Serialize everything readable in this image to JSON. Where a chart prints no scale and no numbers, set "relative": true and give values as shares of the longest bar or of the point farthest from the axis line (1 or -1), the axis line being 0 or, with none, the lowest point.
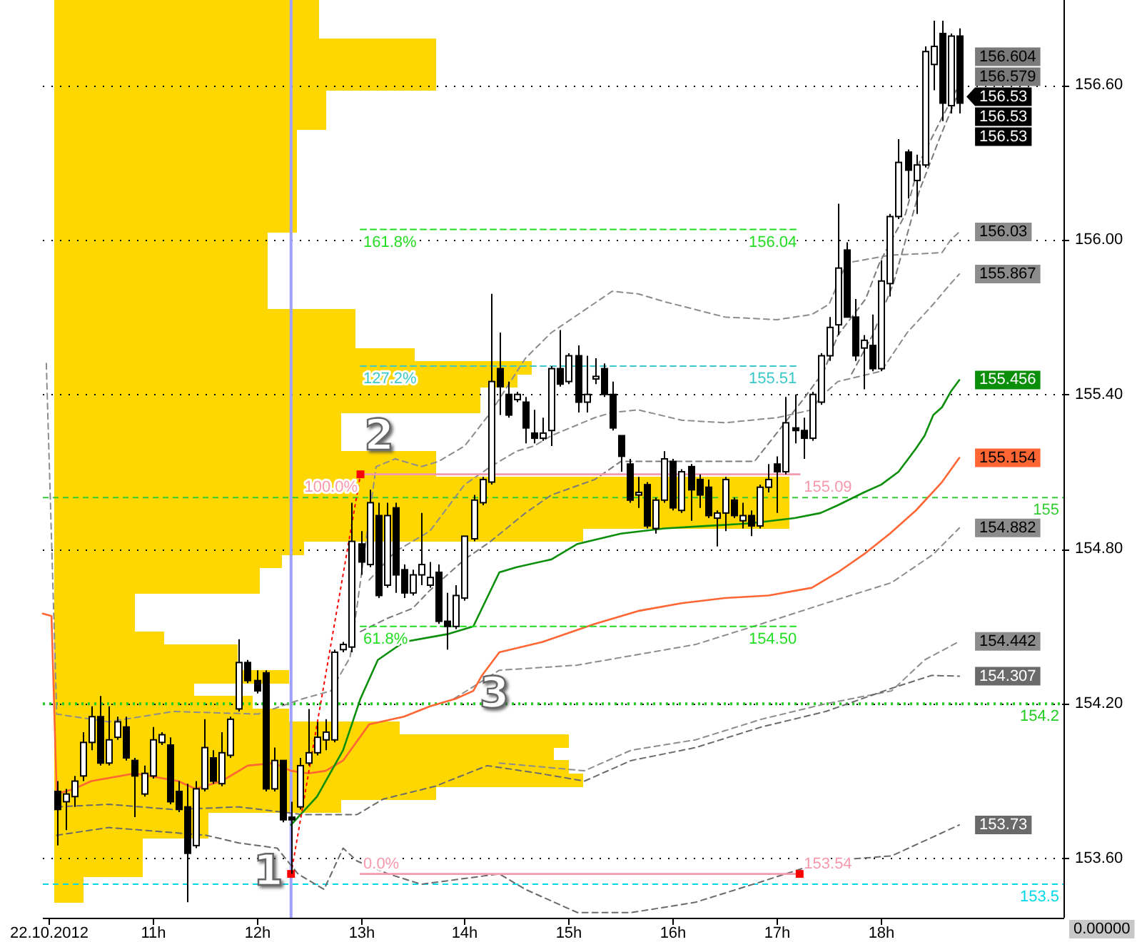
{
  "chart_data": [
    {
      "type": "candlestick",
      "xlim": [
        "2012-10-22T09:57",
        "2012-10-22T19:45"
      ],
      "ylim": [
        153.37,
        156.93
      ],
      "xticks": [
        {
          "value": "2012-10-22T10:00",
          "label": "22.10.2012"
        },
        {
          "value": "2012-10-22T11:00",
          "label": "11h"
        },
        {
          "value": "2012-10-22T12:00",
          "label": "12h"
        },
        {
          "value": "2012-10-22T13:00",
          "label": "13h"
        },
        {
          "value": "2012-10-22T14:00",
          "label": "14h"
        },
        {
          "value": "2012-10-22T15:00",
          "label": "15h"
        },
        {
          "value": "2012-10-22T16:00",
          "label": "16h"
        },
        {
          "value": "2012-10-22T17:00",
          "label": "17h"
        },
        {
          "value": "2012-10-22T18:00",
          "label": "18h"
        }
      ],
      "yticks": [
        {
          "value": 153.6,
          "label": "153.60"
        },
        {
          "value": 154.2,
          "label": "154.20"
        },
        {
          "value": 154.8,
          "label": "154.80"
        },
        {
          "value": 155.4,
          "label": "155.40"
        },
        {
          "value": 156.0,
          "label": "156.00"
        },
        {
          "value": 156.6,
          "label": "156.60"
        }
      ],
      "grid": "y",
      "x": [
        "2012-10-22T10:05",
        "2012-10-22T10:10",
        "2012-10-22T10:15",
        "2012-10-22T10:20",
        "2012-10-22T10:25",
        "2012-10-22T10:30",
        "2012-10-22T10:35",
        "2012-10-22T10:40",
        "2012-10-22T10:45",
        "2012-10-22T10:50",
        "2012-10-22T10:55",
        "2012-10-22T11:00",
        "2012-10-22T11:05",
        "2012-10-22T11:10",
        "2012-10-22T11:15",
        "2012-10-22T11:20",
        "2012-10-22T11:25",
        "2012-10-22T11:30",
        "2012-10-22T11:35",
        "2012-10-22T11:40",
        "2012-10-22T11:45",
        "2012-10-22T11:50",
        "2012-10-22T11:55",
        "2012-10-22T12:00",
        "2012-10-22T12:05",
        "2012-10-22T12:10",
        "2012-10-22T12:15",
        "2012-10-22T12:20",
        "2012-10-22T12:25",
        "2012-10-22T12:30",
        "2012-10-22T12:35",
        "2012-10-22T12:40",
        "2012-10-22T12:45",
        "2012-10-22T12:50",
        "2012-10-22T12:55",
        "2012-10-22T13:00",
        "2012-10-22T13:05",
        "2012-10-22T13:10",
        "2012-10-22T13:15",
        "2012-10-22T13:20",
        "2012-10-22T13:25",
        "2012-10-22T13:30",
        "2012-10-22T13:35",
        "2012-10-22T13:40",
        "2012-10-22T13:45",
        "2012-10-22T13:50",
        "2012-10-22T13:55",
        "2012-10-22T14:00",
        "2012-10-22T14:05",
        "2012-10-22T14:10",
        "2012-10-22T14:15",
        "2012-10-22T14:20",
        "2012-10-22T14:25",
        "2012-10-22T14:30",
        "2012-10-22T14:35",
        "2012-10-22T14:40",
        "2012-10-22T14:45",
        "2012-10-22T14:50",
        "2012-10-22T14:55",
        "2012-10-22T15:00",
        "2012-10-22T15:05",
        "2012-10-22T15:10",
        "2012-10-22T15:15",
        "2012-10-22T15:20",
        "2012-10-22T15:25",
        "2012-10-22T15:30",
        "2012-10-22T15:35",
        "2012-10-22T15:40",
        "2012-10-22T15:45",
        "2012-10-22T15:50",
        "2012-10-22T15:55",
        "2012-10-22T16:00",
        "2012-10-22T16:05",
        "2012-10-22T16:10",
        "2012-10-22T16:15",
        "2012-10-22T16:20",
        "2012-10-22T16:25",
        "2012-10-22T16:30",
        "2012-10-22T16:35",
        "2012-10-22T16:40",
        "2012-10-22T16:45",
        "2012-10-22T16:50",
        "2012-10-22T16:55",
        "2012-10-22T17:00",
        "2012-10-22T17:05",
        "2012-10-22T17:10",
        "2012-10-22T17:15",
        "2012-10-22T17:20",
        "2012-10-22T17:25",
        "2012-10-22T17:30",
        "2012-10-22T17:35",
        "2012-10-22T17:40",
        "2012-10-22T17:45",
        "2012-10-22T17:50",
        "2012-10-22T17:55",
        "2012-10-22T18:00",
        "2012-10-22T18:05",
        "2012-10-22T18:10",
        "2012-10-22T18:15",
        "2012-10-22T18:20",
        "2012-10-22T18:25",
        "2012-10-22T18:30",
        "2012-10-22T18:35",
        "2012-10-22T18:40",
        "2012-10-22T18:45"
      ],
      "ohlc": [
        [
          153.86,
          153.9,
          153.65,
          153.79
        ],
        [
          153.82,
          153.87,
          153.71,
          153.85
        ],
        [
          153.84,
          153.92,
          153.8,
          153.9
        ],
        [
          153.92,
          154.09,
          153.9,
          154.05
        ],
        [
          154.05,
          154.19,
          154.02,
          154.15
        ],
        [
          154.15,
          154.23,
          153.96,
          153.97
        ],
        [
          153.97,
          154.19,
          153.96,
          154.06
        ],
        [
          154.07,
          154.15,
          154.06,
          154.13
        ],
        [
          154.11,
          154.15,
          153.98,
          153.99
        ],
        [
          153.98,
          153.99,
          153.76,
          153.92
        ],
        [
          153.85,
          153.96,
          153.84,
          153.93
        ],
        [
          153.92,
          154.11,
          153.91,
          154.06
        ],
        [
          154.05,
          154.09,
          154.04,
          154.08
        ],
        [
          154.04,
          154.07,
          153.81,
          153.82
        ],
        [
          153.86,
          153.9,
          153.78,
          153.79
        ],
        [
          153.8,
          153.89,
          153.43,
          153.62
        ],
        [
          153.65,
          153.9,
          153.64,
          153.87
        ],
        [
          153.87,
          154.14,
          153.86,
          154.03
        ],
        [
          153.99,
          154.02,
          153.89,
          153.9
        ],
        [
          153.89,
          154.09,
          153.88,
          154.01
        ],
        [
          154.0,
          154.15,
          153.99,
          154.14
        ],
        [
          154.18,
          154.45,
          154.17,
          154.36
        ],
        [
          154.36,
          154.37,
          154.28,
          154.29
        ],
        [
          154.29,
          154.33,
          154.24,
          154.25
        ],
        [
          154.32,
          154.33,
          153.86,
          153.87
        ],
        [
          153.87,
          154.03,
          153.86,
          153.98
        ],
        [
          153.98,
          153.98,
          153.74,
          153.75
        ],
        [
          153.76,
          153.82,
          153.54,
          153.75
        ],
        [
          153.8,
          153.99,
          153.79,
          153.96
        ],
        [
          153.97,
          154.18,
          153.96,
          154.01
        ],
        [
          154.01,
          154.13,
          154.0,
          154.07
        ],
        [
          154.06,
          154.14,
          154.02,
          154.09
        ],
        [
          154.06,
          154.41,
          154.05,
          154.4
        ],
        [
          154.41,
          154.44,
          154.4,
          154.43
        ],
        [
          154.42,
          154.98,
          154.4,
          154.83
        ],
        [
          154.82,
          154.87,
          154.7,
          154.75
        ],
        [
          154.74,
          155.03,
          154.73,
          154.98
        ],
        [
          154.93,
          154.98,
          154.61,
          154.62
        ],
        [
          154.66,
          154.98,
          154.65,
          154.93
        ],
        [
          154.96,
          154.98,
          154.63,
          154.7
        ],
        [
          154.72,
          154.74,
          154.61,
          154.63
        ],
        [
          154.63,
          154.72,
          154.62,
          154.7
        ],
        [
          154.7,
          154.94,
          154.66,
          154.74
        ],
        [
          154.66,
          154.75,
          154.65,
          154.69
        ],
        [
          154.71,
          154.74,
          154.51,
          154.52
        ],
        [
          154.52,
          154.63,
          154.41,
          154.5
        ],
        [
          154.5,
          154.66,
          154.49,
          154.62
        ],
        [
          154.61,
          154.85,
          154.6,
          154.85
        ],
        [
          154.84,
          155.01,
          154.83,
          154.99
        ],
        [
          154.98,
          155.08,
          154.97,
          155.07
        ],
        [
          155.06,
          155.79,
          155.05,
          155.45
        ],
        [
          155.5,
          155.64,
          155.32,
          155.43
        ],
        [
          155.4,
          155.45,
          155.31,
          155.32
        ],
        [
          155.38,
          155.41,
          155.37,
          155.4
        ],
        [
          155.37,
          155.39,
          155.21,
          155.27
        ],
        [
          155.25,
          155.34,
          155.21,
          155.23
        ],
        [
          155.23,
          155.31,
          155.22,
          155.25
        ],
        [
          155.26,
          155.51,
          155.2,
          155.5
        ],
        [
          155.5,
          155.65,
          155.43,
          155.44
        ],
        [
          155.45,
          155.56,
          155.44,
          155.55
        ],
        [
          155.55,
          155.59,
          155.33,
          155.37
        ],
        [
          155.37,
          155.55,
          155.33,
          155.4
        ],
        [
          155.46,
          155.54,
          155.44,
          155.47
        ],
        [
          155.5,
          155.52,
          155.39,
          155.4
        ],
        [
          155.4,
          155.45,
          155.26,
          155.27
        ],
        [
          155.24,
          155.24,
          155.1,
          155.16
        ],
        [
          155.13,
          155.15,
          154.98,
          154.99
        ],
        [
          155.01,
          155.08,
          154.96,
          155.02
        ],
        [
          155.05,
          155.06,
          154.88,
          154.89
        ],
        [
          154.88,
          155.0,
          154.86,
          154.99
        ],
        [
          154.99,
          155.18,
          154.98,
          155.15
        ],
        [
          155.14,
          155.15,
          154.95,
          154.96
        ],
        [
          154.95,
          155.11,
          154.94,
          155.1
        ],
        [
          155.12,
          155.13,
          154.91,
          155.03
        ],
        [
          155.07,
          155.09,
          154.96,
          155.01
        ],
        [
          155.04,
          155.07,
          154.92,
          154.93
        ],
        [
          154.92,
          154.95,
          154.81,
          154.94
        ],
        [
          154.94,
          155.08,
          154.87,
          155.07
        ],
        [
          154.99,
          155.0,
          154.92,
          154.93
        ],
        [
          154.91,
          154.98,
          154.88,
          154.93
        ],
        [
          154.93,
          154.95,
          154.85,
          154.89
        ],
        [
          154.89,
          155.05,
          154.88,
          155.04
        ],
        [
          155.04,
          155.13,
          155.02,
          155.07
        ],
        [
          155.13,
          155.16,
          154.94,
          155.1
        ],
        [
          155.1,
          155.39,
          155.09,
          155.29
        ],
        [
          155.27,
          155.4,
          155.21,
          155.26
        ],
        [
          155.26,
          155.31,
          155.15,
          155.23
        ],
        [
          155.23,
          155.41,
          155.22,
          155.4
        ],
        [
          155.37,
          155.56,
          155.36,
          155.55
        ],
        [
          155.55,
          155.7,
          155.53,
          155.66
        ],
        [
          155.67,
          156.14,
          155.63,
          155.89
        ],
        [
          155.96,
          155.99,
          155.7,
          155.7
        ],
        [
          155.7,
          155.77,
          155.53,
          155.55
        ],
        [
          155.58,
          155.63,
          155.42,
          155.61
        ],
        [
          155.59,
          155.71,
          155.49,
          155.5
        ],
        [
          155.5,
          155.92,
          155.49,
          155.84
        ],
        [
          155.83,
          156.1,
          155.78,
          156.09
        ],
        [
          156.09,
          156.39,
          156.08,
          156.3
        ],
        [
          156.34,
          156.35,
          156.16,
          156.27
        ],
        [
          156.23,
          156.33,
          156.1,
          156.29
        ],
        [
          156.29,
          156.75,
          156.28,
          156.73
        ],
        [
          156.68,
          156.85,
          156.58,
          156.75
        ],
        [
          156.8,
          156.85,
          156.46,
          156.53
        ],
        [
          156.52,
          156.8,
          156.49,
          156.79
        ],
        [
          156.79,
          156.82,
          156.49,
          156.53
        ]
      ],
      "series": [
        {
          "type": "line",
          "color": "#8c8c8c",
          "line_style": "dashed",
          "x": [
            "2012-10-22T09:59",
            "2012-10-22T10:05",
            "2012-10-22T10:35",
            "2012-10-22T11:12",
            "2012-10-22T12:01",
            "2012-10-22T12:27",
            "2012-10-22T12:43",
            "2012-10-22T12:54",
            "2012-10-22T13:09",
            "2012-10-22T13:20",
            "2012-10-22T13:35",
            "2012-10-22T13:45",
            "2012-10-22T14:00",
            "2012-10-22T14:15",
            "2012-10-22T14:35",
            "2012-10-22T14:50",
            "2012-10-22T15:25",
            "2012-10-22T15:40",
            "2012-10-22T15:55",
            "2012-10-22T16:30",
            "2012-10-22T17:00",
            "2012-10-22T17:20",
            "2012-10-22T17:30",
            "2012-10-22T17:40",
            "2012-10-22T18:05",
            "2012-10-22T18:35",
            "2012-10-22T18:40",
            "2012-10-22T18:45"
          ],
          "values": [
            155.52,
            154.16,
            154.13,
            154.17,
            154.16,
            154.22,
            154.25,
            154.38,
            155.12,
            155.15,
            155.12,
            155.14,
            155.2,
            155.33,
            155.54,
            155.64,
            155.8,
            155.79,
            155.76,
            155.7,
            155.69,
            155.71,
            155.75,
            155.91,
            155.94,
            155.95,
            156.0,
            156.03
          ],
          "value_labels": [
            null,
            null,
            null,
            null,
            null,
            null,
            null,
            null,
            null,
            null,
            null,
            null,
            null,
            null,
            null,
            null,
            null,
            null,
            null,
            null,
            null,
            null,
            null,
            null,
            null,
            null,
            null,
            "156.03"
          ]
        },
        {
          "type": "line",
          "color": "#8c8c8c",
          "line_style": "dashed",
          "x": [
            "2012-10-22T13:05",
            "2012-10-22T13:20",
            "2012-10-22T13:40",
            "2012-10-22T14:00",
            "2012-10-22T14:15",
            "2012-10-22T14:30",
            "2012-10-22T14:40",
            "2012-10-22T14:50",
            "2012-10-22T15:15",
            "2012-10-22T15:25",
            "2012-10-22T15:40",
            "2012-10-22T16:05",
            "2012-10-22T16:30",
            "2012-10-22T17:00",
            "2012-10-22T17:20",
            "2012-10-22T17:25",
            "2012-10-22T17:35",
            "2012-10-22T18:00",
            "2012-10-22T18:15",
            "2012-10-22T18:30",
            "2012-10-22T18:40",
            "2012-10-22T18:45"
          ],
          "values": [
            154.68,
            154.79,
            154.87,
            155.05,
            155.12,
            155.18,
            155.2,
            155.24,
            155.31,
            155.33,
            155.34,
            155.3,
            155.29,
            155.31,
            155.34,
            155.39,
            155.45,
            155.49,
            155.64,
            155.75,
            155.83,
            155.867
          ],
          "value_labels": [
            null,
            null,
            null,
            null,
            null,
            null,
            null,
            null,
            null,
            null,
            null,
            null,
            null,
            null,
            null,
            null,
            null,
            null,
            null,
            null,
            null,
            "155.867"
          ]
        },
        {
          "type": "line",
          "color": "#7a7a7a",
          "line_style": "dashed",
          "x": [
            "2012-10-22T13:00",
            "2012-10-22T13:15",
            "2012-10-22T13:30",
            "2012-10-22T13:40",
            "2012-10-22T14:00",
            "2012-10-22T14:15",
            "2012-10-22T14:35",
            "2012-10-22T14:50",
            "2012-10-22T15:15",
            "2012-10-22T15:30",
            "2012-10-22T16:05",
            "2012-10-22T16:47",
            "2012-10-22T17:15",
            "2012-10-22T17:27",
            "2012-10-22T17:35",
            "2012-10-22T17:51",
            "2012-10-22T17:59",
            "2012-10-22T18:14",
            "2012-10-22T18:22",
            "2012-10-22T18:34",
            "2012-10-22T18:45"
          ],
          "values": [
            154.48,
            154.53,
            154.57,
            154.64,
            154.76,
            154.83,
            154.94,
            155.01,
            155.07,
            155.14,
            155.14,
            155.14,
            155.38,
            155.49,
            155.63,
            155.77,
            155.91,
            156.1,
            156.3,
            156.46,
            156.604
          ],
          "value_labels": [
            null,
            null,
            null,
            null,
            null,
            null,
            null,
            null,
            null,
            null,
            null,
            null,
            null,
            null,
            null,
            null,
            null,
            null,
            null,
            null,
            "156.604"
          ]
        },
        {
          "type": "line",
          "color": "#7a7a7a",
          "line_style": "dashed",
          "x": [
            "2012-10-22T17:43",
            "2012-10-22T17:55",
            "2012-10-22T18:07",
            "2012-10-22T18:22",
            "2012-10-22T18:34",
            "2012-10-22T18:45"
          ],
          "values": [
            155.48,
            155.63,
            155.83,
            156.19,
            156.4,
            156.579
          ],
          "value_labels": [
            null,
            null,
            null,
            null,
            null,
            "156.579"
          ]
        },
        {
          "type": "line",
          "color": "#8c8c8c",
          "line_style": "dashed",
          "x": [
            "2012-10-22T13:54",
            "2012-10-22T14:20",
            "2012-10-22T15:05",
            "2012-10-22T16:13",
            "2012-10-22T16:51",
            "2012-10-22T17:28",
            "2012-10-22T18:06",
            "2012-10-22T18:30",
            "2012-10-22T18:45"
          ],
          "values": [
            154.22,
            154.33,
            154.35,
            154.43,
            154.51,
            154.59,
            154.67,
            154.78,
            154.882
          ],
          "value_labels": [
            null,
            null,
            null,
            null,
            null,
            null,
            null,
            null,
            "154.882"
          ]
        },
        {
          "type": "line",
          "color": "#8c8c8c",
          "line_style": "dashed",
          "x": [
            "2012-10-22T14:20",
            "2012-10-22T15:09",
            "2012-10-22T15:36",
            "2012-10-22T16:13",
            "2012-10-22T16:51",
            "2012-10-22T17:28",
            "2012-10-22T18:06",
            "2012-10-22T18:25",
            "2012-10-22T18:45"
          ],
          "values": [
            153.97,
            153.94,
            154.02,
            154.06,
            154.14,
            154.2,
            154.25,
            154.37,
            154.442
          ],
          "value_labels": [
            null,
            null,
            null,
            null,
            null,
            null,
            null,
            null,
            "154.442"
          ]
        },
        {
          "type": "line",
          "color": "#6a6a6a",
          "line_style": "dashed",
          "x": [
            "2012-10-22T10:05",
            "2012-10-22T10:35",
            "2012-10-22T11:12",
            "2012-10-22T11:50",
            "2012-10-22T12:27",
            "2012-10-22T12:58",
            "2012-10-22T13:13",
            "2012-10-22T13:43",
            "2012-10-22T14:13",
            "2012-10-22T14:43",
            "2012-10-22T15:09",
            "2012-10-22T15:36",
            "2012-10-22T16:13",
            "2012-10-22T16:51",
            "2012-10-22T17:28",
            "2012-10-22T18:06",
            "2012-10-22T18:29",
            "2012-10-22T18:45"
          ],
          "values": [
            153.8,
            153.81,
            153.79,
            153.8,
            153.77,
            153.77,
            153.83,
            153.88,
            153.96,
            153.93,
            153.9,
            153.98,
            154.03,
            154.11,
            154.17,
            154.26,
            154.31,
            154.307
          ],
          "value_labels": [
            null,
            null,
            null,
            null,
            null,
            null,
            null,
            null,
            null,
            null,
            null,
            null,
            null,
            null,
            null,
            null,
            null,
            "154.307"
          ]
        },
        {
          "type": "line",
          "color": "#6a6a6a",
          "line_style": "dashed",
          "x": [
            "2012-10-22T10:05",
            "2012-10-22T10:35",
            "2012-10-22T11:31",
            "2012-10-22T11:50",
            "2012-10-22T12:12",
            "2012-10-22T12:24",
            "2012-10-22T12:39",
            "2012-10-22T12:50",
            "2012-10-22T12:58",
            "2012-10-22T13:16",
            "2012-10-22T13:35",
            "2012-10-22T14:20",
            "2012-10-22T14:35",
            "2012-10-22T15:05",
            "2012-10-22T15:36",
            "2012-10-22T16:13",
            "2012-10-22T16:51",
            "2012-10-22T17:28",
            "2012-10-22T18:06",
            "2012-10-22T18:32",
            "2012-10-22T18:45"
          ],
          "values": [
            153.69,
            153.72,
            153.69,
            153.66,
            153.64,
            153.54,
            153.48,
            153.64,
            153.59,
            153.54,
            153.5,
            153.54,
            153.48,
            153.39,
            153.39,
            153.43,
            153.51,
            153.59,
            153.61,
            153.69,
            153.73
          ],
          "value_labels": [
            null,
            null,
            null,
            null,
            null,
            null,
            null,
            null,
            null,
            null,
            null,
            null,
            null,
            null,
            null,
            null,
            null,
            null,
            null,
            null,
            "153.73"
          ]
        },
        {
          "type": "line",
          "color": "#ff6633",
          "line_style": "solid",
          "x": [
            "2012-10-22T09:57",
            "2012-10-22T10:02",
            "2012-10-22T10:05",
            "2012-10-22T10:15",
            "2012-10-22T10:25",
            "2012-10-22T10:50",
            "2012-10-22T11:15",
            "2012-10-22T11:25",
            "2012-10-22T11:40",
            "2012-10-22T11:55",
            "2012-10-22T12:10",
            "2012-10-22T12:20",
            "2012-10-22T12:30",
            "2012-10-22T12:40",
            "2012-10-22T12:50",
            "2012-10-22T13:05",
            "2012-10-22T13:25",
            "2012-10-22T13:40",
            "2012-10-22T13:55",
            "2012-10-22T14:05",
            "2012-10-22T14:10",
            "2012-10-22T14:20",
            "2012-10-22T14:45",
            "2012-10-22T15:15",
            "2012-10-22T15:40",
            "2012-10-22T16:05",
            "2012-10-22T16:30",
            "2012-10-22T16:55",
            "2012-10-22T17:20",
            "2012-10-22T17:35",
            "2012-10-22T17:50",
            "2012-10-22T18:05",
            "2012-10-22T18:20",
            "2012-10-22T18:35",
            "2012-10-22T18:45"
          ],
          "values": [
            154.55,
            154.54,
            153.85,
            153.87,
            153.9,
            153.93,
            153.9,
            153.87,
            153.9,
            153.96,
            153.97,
            153.94,
            153.93,
            153.94,
            153.98,
            154.12,
            154.15,
            154.19,
            154.22,
            154.25,
            154.31,
            154.4,
            154.44,
            154.51,
            154.56,
            154.59,
            154.61,
            154.62,
            154.65,
            154.71,
            154.78,
            154.86,
            154.95,
            155.06,
            155.154
          ],
          "value_labels": [
            null,
            null,
            null,
            null,
            null,
            null,
            null,
            null,
            null,
            null,
            null,
            null,
            null,
            null,
            null,
            null,
            null,
            null,
            null,
            null,
            null,
            null,
            null,
            null,
            null,
            null,
            null,
            null,
            null,
            null,
            null,
            null,
            null,
            null,
            "155.154"
          ]
        },
        {
          "type": "line",
          "color": "#0b8f0b",
          "line_style": "solid",
          "x": [
            "2012-10-22T12:20",
            "2012-10-22T12:35",
            "2012-10-22T12:50",
            "2012-10-22T13:00",
            "2012-10-22T13:10",
            "2012-10-22T13:25",
            "2012-10-22T13:50",
            "2012-10-22T14:05",
            "2012-10-22T14:10",
            "2012-10-22T14:20",
            "2012-10-22T14:30",
            "2012-10-22T14:50",
            "2012-10-22T15:05",
            "2012-10-22T15:30",
            "2012-10-22T15:55",
            "2012-10-22T16:20",
            "2012-10-22T16:45",
            "2012-10-22T17:10",
            "2012-10-22T17:25",
            "2012-10-22T17:35",
            "2012-10-22T17:50",
            "2012-10-22T18:00",
            "2012-10-22T18:10",
            "2012-10-22T18:20",
            "2012-10-22T18:25",
            "2012-10-22T18:30",
            "2012-10-22T18:35",
            "2012-10-22T18:40",
            "2012-10-22T18:45"
          ],
          "values": [
            153.73,
            153.84,
            154.02,
            154.22,
            154.37,
            154.44,
            154.47,
            154.5,
            154.57,
            154.71,
            154.73,
            154.76,
            154.82,
            154.86,
            154.88,
            154.89,
            154.9,
            154.92,
            154.94,
            154.97,
            155.02,
            155.05,
            155.1,
            155.19,
            155.24,
            155.32,
            155.35,
            155.41,
            155.456
          ],
          "value_labels": [
            null,
            null,
            null,
            null,
            null,
            null,
            null,
            null,
            null,
            null,
            null,
            null,
            null,
            null,
            null,
            null,
            null,
            null,
            null,
            null,
            null,
            null,
            null,
            null,
            null,
            null,
            null,
            null,
            "155.456"
          ]
        },
        {
          "type": "line",
          "name": "161.8%",
          "color": "#22dd22",
          "line_style": "dashed",
          "x": [
            "2012-10-22T13:00",
            "2012-10-22T17:13"
          ],
          "values": [
            156.04,
            156.04
          ],
          "value_labels": [
            null,
            "156.04"
          ]
        },
        {
          "type": "line",
          "name": "127.2%",
          "color": "#3cc8c8",
          "line_style": "dashed",
          "x": [
            "2012-10-22T13:00",
            "2012-10-22T17:13"
          ],
          "values": [
            155.51,
            155.51
          ],
          "value_labels": [
            null,
            "155.51"
          ]
        },
        {
          "type": "line",
          "name": "100.0%",
          "color": "#f799ad",
          "line_style": "solid",
          "x": [
            "2012-10-22T13:00",
            "2012-10-22T17:13"
          ],
          "values": [
            155.09,
            155.09
          ],
          "value_labels": [
            null,
            "155.09"
          ]
        },
        {
          "type": "line",
          "name": "61.8%",
          "color": "#22dd22",
          "line_style": "dashed",
          "x": [
            "2012-10-22T13:00",
            "2012-10-22T17:13"
          ],
          "values": [
            154.5,
            154.5
          ],
          "value_labels": [
            null,
            "154.50"
          ]
        },
        {
          "type": "line",
          "name": "0.0%",
          "color": "#f799ad",
          "line_style": "solid",
          "x": [
            "2012-10-22T13:00",
            "2012-10-22T17:13"
          ],
          "values": [
            153.54,
            153.54
          ],
          "value_labels": [
            null,
            "153.54"
          ]
        },
        {
          "type": "line",
          "color": "#ff0000",
          "line_style": "dotted",
          "x": [
            "2012-10-22T12:20",
            "2012-10-22T13:00"
          ],
          "values": [
            153.54,
            155.09
          ]
        },
        {
          "type": "scatter",
          "color": "#ff0000",
          "marker": "square",
          "x": [
            "2012-10-22T12:20",
            "2012-10-22T13:00",
            "2012-10-22T17:13"
          ],
          "values": [
            153.54,
            155.09,
            153.54
          ]
        }
      ],
      "ref_lines": [
        {
          "axis": "y",
          "value": 155,
          "label": "155",
          "color": "#33cc33",
          "line_style": "dashed"
        },
        {
          "axis": "y",
          "value": 154.2,
          "label": "154.2",
          "color": "#22cc22",
          "line_style": "dotted"
        },
        {
          "axis": "y",
          "value": 153.5,
          "label": "153.5",
          "color": "#00d8e8",
          "line_style": "dashed"
        },
        {
          "axis": "x",
          "value": "2012-10-22T12:20",
          "color": "#a0a0ff"
        }
      ],
      "annotations": [
        {
          "text": "1",
          "x": "2012-10-22T12:20",
          "y": 153.54
        },
        {
          "text": "2",
          "x": "2012-10-22T13:00",
          "y": 155.09
        },
        {
          "text": "3",
          "x": "2012-10-22T13:50",
          "y": 154.41
        },
        {
          "text": "156.53",
          "x": "2012-10-22T18:45",
          "y": 156.53
        },
        {
          "text": "156.53",
          "x": "2012-10-22T18:45",
          "y": 156.53
        },
        {
          "text": "156.53",
          "x": "2012-10-22T18:45",
          "y": 156.53
        },
        "0.00000"
      ]
    },
    {
      "type": "bar",
      "orientation": "horizontal",
      "relative": true,
      "color": "#ffd700",
      "categories": [
        null,
        null,
        null,
        null,
        null,
        null,
        null,
        null,
        null,
        null,
        null,
        null,
        null,
        null,
        null,
        null,
        null,
        null,
        null,
        null,
        null,
        null,
        null,
        null,
        null,
        null,
        null,
        null,
        null,
        null,
        null,
        null,
        null,
        null,
        null,
        null,
        null,
        null,
        null,
        null,
        null,
        null,
        null,
        null,
        null,
        null,
        null,
        null,
        null,
        null,
        null,
        null,
        null,
        null,
        null,
        null,
        null,
        null,
        null,
        null,
        null,
        null,
        null,
        null,
        null,
        null,
        null,
        null,
        null,
        null
      ],
      "values": [
        0.36,
        0.36,
        0.36,
        0.52,
        0.52,
        0.52,
        0.52,
        0.37,
        0.37,
        0.37,
        0.33,
        0.33,
        0.33,
        0.33,
        0.33,
        0.33,
        0.33,
        0.33,
        0.29,
        0.29,
        0.29,
        0.29,
        0.29,
        0.29,
        0.41,
        0.41,
        0.41,
        0.49,
        0.65,
        0.63,
        0.58,
        0.58,
        0.39,
        0.39,
        0.39,
        0.52,
        0.52,
        1,
        1,
        1,
        1,
        0.72,
        0.34,
        0.31,
        0.28,
        0.28,
        0.11,
        0.11,
        0.11,
        0.15,
        0.25,
        0.25,
        0.32,
        0.19,
        0.27,
        0.32,
        0.47,
        0.7,
        0.68,
        0.7,
        0.72,
        0.52,
        0.39,
        0.21,
        0.21,
        0.12,
        0.12,
        0.12,
        0.04,
        0.04
      ]
    }
  ]
}
